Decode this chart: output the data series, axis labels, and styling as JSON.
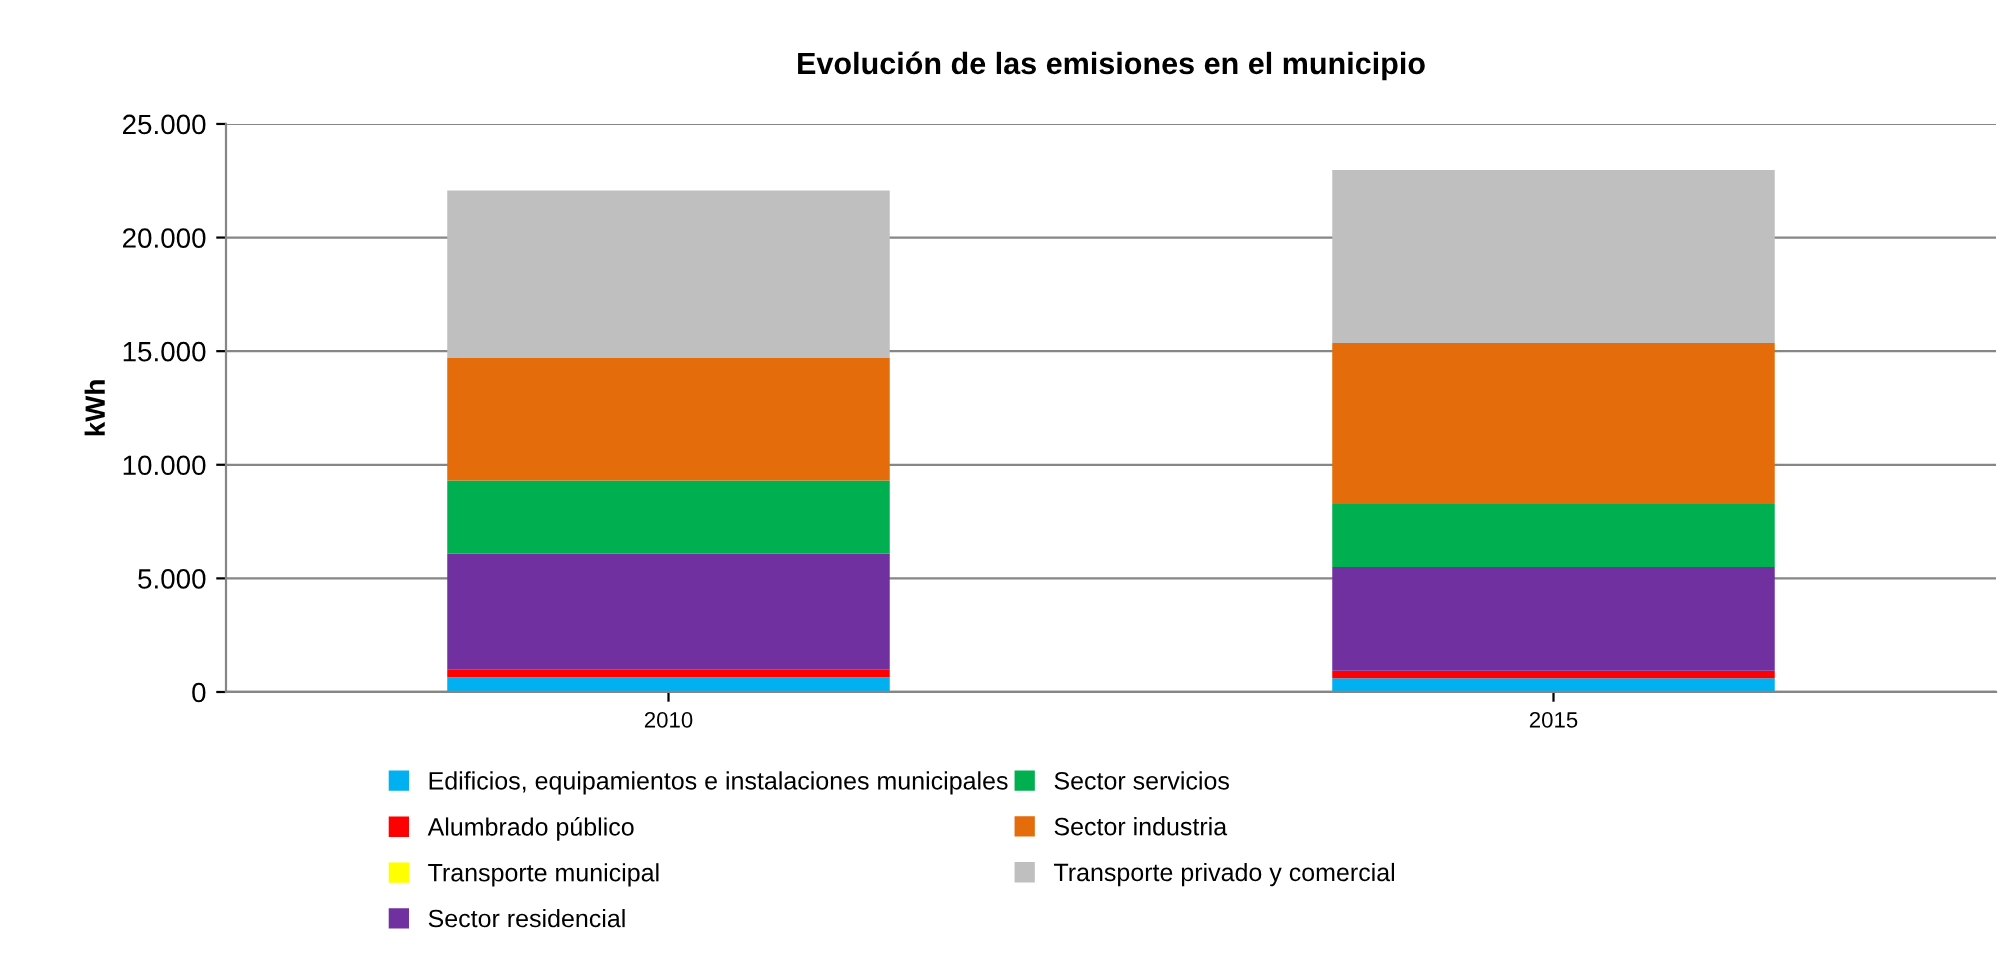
{
  "chart_data": {
    "type": "bar",
    "title": "Evolución de las emisiones en el municipio",
    "ylabel": "kWh",
    "categories": [
      "2010",
      "2015"
    ],
    "stacked": true,
    "series": [
      {
        "name": "Edificios, equipamientos e instalaciones municipales",
        "color": "#00b0f0",
        "values": [
          650,
          600
        ]
      },
      {
        "name": "Alumbrado público",
        "color": "#ff0000",
        "values": [
          350,
          340
        ]
      },
      {
        "name": "Transporte municipal",
        "color": "#ffff00",
        "values": [
          0,
          0
        ]
      },
      {
        "name": "Sector residencial",
        "color": "#7030a0",
        "values": [
          5100,
          4560
        ]
      },
      {
        "name": "Sector servicios",
        "color": "#00b050",
        "values": [
          3210,
          2775
        ]
      },
      {
        "name": "Sector industria",
        "color": "#e46c0a",
        "values": [
          5415,
          7085
        ]
      },
      {
        "name": "Transporte privado y comercial",
        "color": "#bfbfbf",
        "values": [
          7350,
          7615
        ]
      }
    ],
    "ylim": [
      0,
      25000
    ],
    "yticks": [
      {
        "value": 0,
        "label": "0"
      },
      {
        "value": 5000,
        "label": "5.000"
      },
      {
        "value": 10000,
        "label": "10.000"
      },
      {
        "value": 15000,
        "label": "15.000"
      },
      {
        "value": 20000,
        "label": "20.000"
      },
      {
        "value": 25000,
        "label": "25.000"
      }
    ],
    "grid": "y",
    "legend": "bottom"
  }
}
